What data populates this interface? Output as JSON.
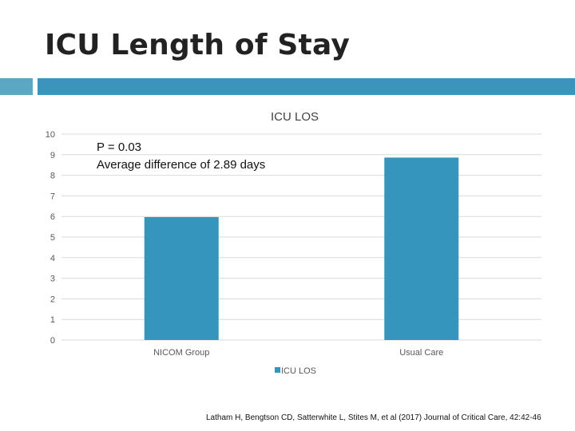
{
  "slide": {
    "title": "ICU Length of Stay",
    "citation": "Latham H, Bengtson CD, Satterwhite L, Stites M, et al (2017) Journal of Critical Care, 42:42-46"
  },
  "colors": {
    "bar": "#3595BC",
    "accent_small": "#5BA8C4",
    "accent_large": "#3A94BB",
    "grid": "#D9D9D9"
  },
  "chart_data": {
    "type": "bar",
    "title": "ICU LOS",
    "categories": [
      "NICOM Group",
      "Usual Care"
    ],
    "series": [
      {
        "name": "ICU LOS",
        "values": [
          5.97,
          8.86
        ]
      }
    ],
    "ylim": [
      0,
      10
    ],
    "yticks": [
      0,
      1,
      2,
      3,
      4,
      5,
      6,
      7,
      8,
      9,
      10
    ],
    "grid": true,
    "legend": "bottom",
    "annotations": [
      "P = 0.03",
      "Average difference of 2.89 days"
    ]
  }
}
